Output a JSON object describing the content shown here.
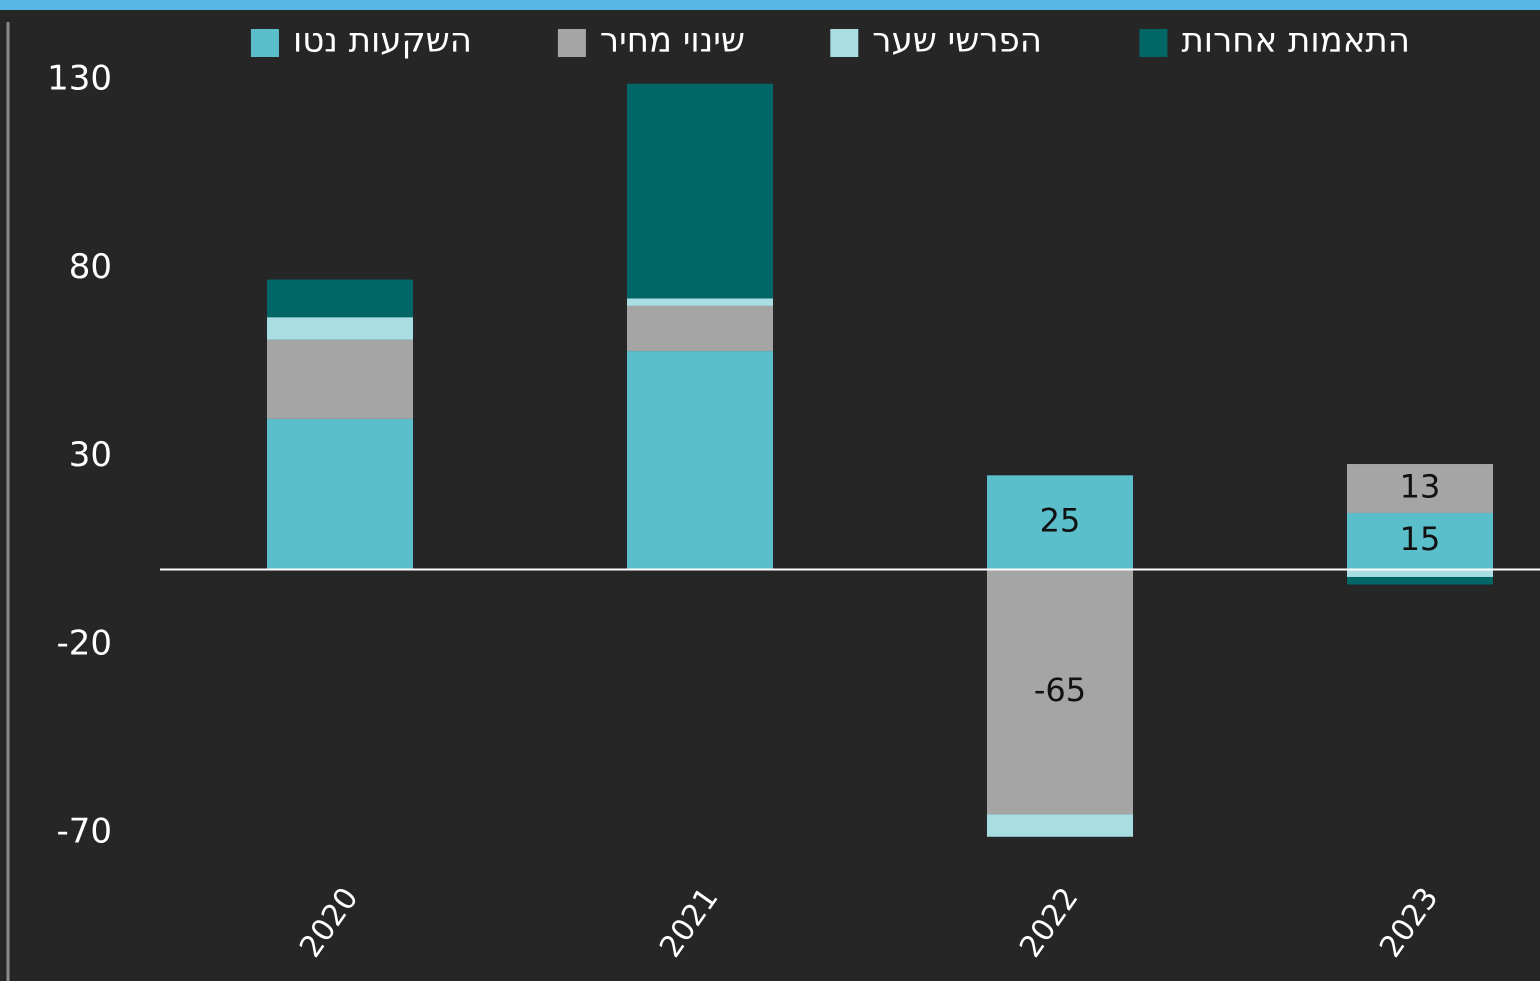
{
  "chart_data": {
    "type": "stacked_bar",
    "categories": [
      "2020",
      "2021",
      "2022",
      "2023"
    ],
    "series": [
      {
        "name": "השקעות נטו",
        "color": "#5bbfcb",
        "values": [
          40,
          58,
          25,
          15
        ],
        "value_labels": [
          null,
          null,
          "25",
          "15"
        ]
      },
      {
        "name": "שינוי מחיר",
        "color": "#a5a5a5",
        "values": [
          21,
          12,
          -65,
          13
        ],
        "value_labels": [
          null,
          null,
          "-65",
          "13"
        ]
      },
      {
        "name": "הפרשי שער",
        "color": "#a8dde2",
        "values": [
          6,
          2,
          -6,
          -2
        ]
      },
      {
        "name": "התאמות אחרות",
        "color": "#006666",
        "values": [
          10,
          57,
          0,
          -2
        ]
      }
    ],
    "ylim": [
      -70,
      130
    ],
    "yticks": [
      -70,
      -20,
      30,
      80,
      130
    ],
    "legend": "top"
  }
}
